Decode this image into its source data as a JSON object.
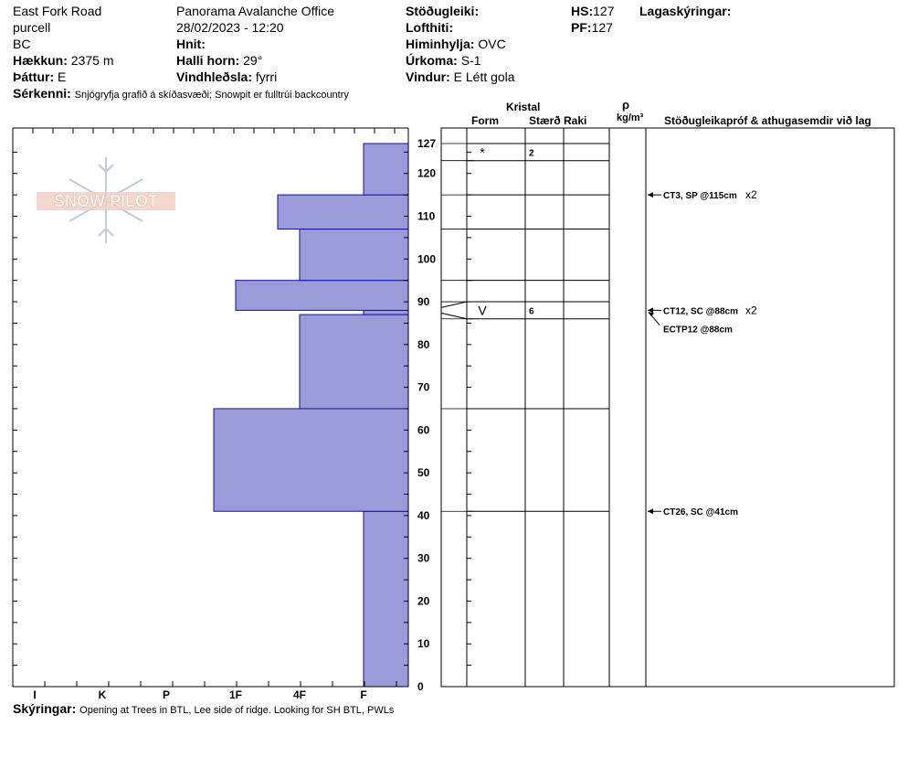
{
  "header": {
    "location": "East Fork Road",
    "range": "purcell",
    "region": "BC",
    "elevation_label": "Hækkun:",
    "elevation_value": "2375 m",
    "aspect_label": "Þáttur:",
    "aspect_value": "E",
    "features_label": "Sérkenni:",
    "features_value": "Snjógryfja grafið á skíðasvæði;  Snowpit er fulltrúi backcountry",
    "operation": "Panorama Avalanche Office",
    "datetime": "28/02/2023 - 12:20",
    "coords_label": "Hnit:",
    "slope_label": "Halli horn:",
    "slope_value": "29°",
    "wind_loading_label": "Vindhleðsla:",
    "wind_loading_value": "fyrri",
    "stability_label": "Stöðugleiki:",
    "air_temp_label": "Lofthiti:",
    "sky_label": "Himinhylja:",
    "sky_value": "OVC",
    "precip_label": "Úrkoma:",
    "precip_value": "S-1",
    "wind_label": "Vindur:",
    "wind_value": "E Létt gola",
    "hs_label": "HS:",
    "hs_value": "127",
    "pf_label": "PF:",
    "pf_value": "127",
    "layer_notes_label": "Lagaskýringar:"
  },
  "watermark": {
    "text": "SNOW PILOT"
  },
  "columns": {
    "crystal": "Kristal",
    "form": "Form",
    "size": "Stærð",
    "moisture": "Raki",
    "rho": "ρ",
    "density_unit": "kg/m³",
    "tests": "Stöðugleikapróf & athugasemdir við lag"
  },
  "chart_data": {
    "type": "bar",
    "orientation": "horizontal",
    "y_axis": "height (cm)",
    "ylim": [
      0,
      127
    ],
    "y_ticks": [
      0,
      10,
      20,
      30,
      40,
      50,
      60,
      70,
      80,
      90,
      100,
      110,
      120,
      127
    ],
    "x_categories": [
      "I",
      "K",
      "P",
      "1F",
      "4F",
      "F"
    ],
    "hardness_layers": [
      {
        "bottom": 0,
        "top": 41,
        "hardness": "F"
      },
      {
        "bottom": 41,
        "top": 65,
        "hardness": "1F+"
      },
      {
        "bottom": 65,
        "top": 87,
        "hardness": "4F"
      },
      {
        "bottom": 87,
        "top": 88,
        "hardness": "F"
      },
      {
        "bottom": 88,
        "top": 95,
        "hardness": "1F"
      },
      {
        "bottom": 95,
        "top": 107,
        "hardness": "4F"
      },
      {
        "bottom": 107,
        "top": 115,
        "hardness": "4F+"
      },
      {
        "bottom": 115,
        "top": 127,
        "hardness": "F"
      }
    ],
    "layer_boundaries": [
      127,
      123,
      115,
      107,
      95,
      90,
      86,
      65,
      41,
      0
    ],
    "crystal_rows": [
      {
        "top": 127,
        "bottom": 123,
        "form": "*",
        "size": "2"
      },
      {
        "top": 90,
        "bottom": 86,
        "form": "V",
        "size": "6"
      }
    ],
    "tests": [
      {
        "height": 115,
        "text": "CT3, SP @115cm",
        "count": "x2"
      },
      {
        "height": 88,
        "text": "CT12, SC @88cm",
        "count": "x2"
      },
      {
        "height": 88,
        "text": "ECTP12 @88cm",
        "count": ""
      },
      {
        "height": 41,
        "text": "CT26, SC @41cm",
        "count": ""
      }
    ]
  },
  "footer": {
    "notes_label": "Skýringar:",
    "notes_value": "Opening at Trees in BTL, Lee side of ridge.  Looking for SH BTL, PWLs"
  }
}
